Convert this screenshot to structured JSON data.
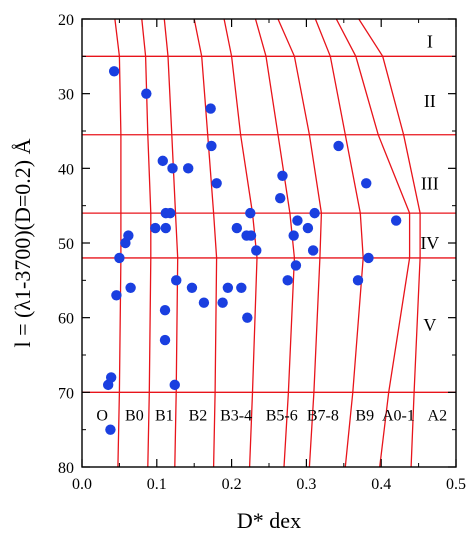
{
  "chart_data": {
    "type": "scatter",
    "title": "",
    "xlabel": "D* dex",
    "ylabel": "l = (λ1-3700)(D=0.2) Å",
    "xlim": [
      0.0,
      0.5
    ],
    "ylim": [
      80,
      20
    ],
    "y_inverted": true,
    "grid": false,
    "x_ticks": [
      "0.0",
      "0.1",
      "0.2",
      "0.3",
      "0.4",
      "0.5"
    ],
    "y_ticks": [
      "20",
      "30",
      "40",
      "50",
      "60",
      "70",
      "80"
    ],
    "colors": {
      "points": "#1a3fe0",
      "curves": "#e8141b",
      "axes": "#000000"
    },
    "points": [
      {
        "x": 0.043,
        "y": 27
      },
      {
        "x": 0.035,
        "y": 69
      },
      {
        "x": 0.039,
        "y": 68
      },
      {
        "x": 0.038,
        "y": 75
      },
      {
        "x": 0.046,
        "y": 57
      },
      {
        "x": 0.05,
        "y": 52
      },
      {
        "x": 0.058,
        "y": 50
      },
      {
        "x": 0.062,
        "y": 49
      },
      {
        "x": 0.065,
        "y": 56
      },
      {
        "x": 0.086,
        "y": 30
      },
      {
        "x": 0.098,
        "y": 48
      },
      {
        "x": 0.108,
        "y": 39
      },
      {
        "x": 0.112,
        "y": 46
      },
      {
        "x": 0.112,
        "y": 48
      },
      {
        "x": 0.111,
        "y": 59
      },
      {
        "x": 0.111,
        "y": 63
      },
      {
        "x": 0.118,
        "y": 46
      },
      {
        "x": 0.121,
        "y": 40
      },
      {
        "x": 0.124,
        "y": 69
      },
      {
        "x": 0.126,
        "y": 55
      },
      {
        "x": 0.142,
        "y": 40
      },
      {
        "x": 0.147,
        "y": 56
      },
      {
        "x": 0.163,
        "y": 58
      },
      {
        "x": 0.172,
        "y": 32
      },
      {
        "x": 0.173,
        "y": 37
      },
      {
        "x": 0.18,
        "y": 42
      },
      {
        "x": 0.188,
        "y": 58
      },
      {
        "x": 0.195,
        "y": 56
      },
      {
        "x": 0.207,
        "y": 48
      },
      {
        "x": 0.213,
        "y": 56
      },
      {
        "x": 0.22,
        "y": 49
      },
      {
        "x": 0.221,
        "y": 60
      },
      {
        "x": 0.225,
        "y": 46
      },
      {
        "x": 0.226,
        "y": 49
      },
      {
        "x": 0.233,
        "y": 51
      },
      {
        "x": 0.265,
        "y": 44
      },
      {
        "x": 0.268,
        "y": 41
      },
      {
        "x": 0.275,
        "y": 55
      },
      {
        "x": 0.283,
        "y": 49
      },
      {
        "x": 0.286,
        "y": 53
      },
      {
        "x": 0.288,
        "y": 47
      },
      {
        "x": 0.302,
        "y": 48
      },
      {
        "x": 0.309,
        "y": 51
      },
      {
        "x": 0.311,
        "y": 46
      },
      {
        "x": 0.343,
        "y": 37
      },
      {
        "x": 0.369,
        "y": 55
      },
      {
        "x": 0.38,
        "y": 42
      },
      {
        "x": 0.383,
        "y": 52
      },
      {
        "x": 0.42,
        "y": 47
      }
    ],
    "horizontal_lines": [
      25,
      35.5,
      46,
      52,
      70
    ],
    "region_labels": [
      {
        "label": "I",
        "x": 0.465,
        "y": 23
      },
      {
        "label": "II",
        "x": 0.465,
        "y": 31
      },
      {
        "label": "III",
        "x": 0.465,
        "y": 42
      },
      {
        "label": "IV",
        "x": 0.465,
        "y": 50
      },
      {
        "label": "V",
        "x": 0.465,
        "y": 61
      }
    ],
    "class_labels": [
      {
        "label": "O",
        "x": 0.027,
        "y": 73
      },
      {
        "label": "B0",
        "x": 0.07,
        "y": 73
      },
      {
        "label": "B1",
        "x": 0.11,
        "y": 73
      },
      {
        "label": "B2",
        "x": 0.155,
        "y": 73
      },
      {
        "label": "B3-4",
        "x": 0.206,
        "y": 73
      },
      {
        "label": "B5-6",
        "x": 0.267,
        "y": 73
      },
      {
        "label": "B7-8",
        "x": 0.322,
        "y": 73
      },
      {
        "label": "B9",
        "x": 0.378,
        "y": 73
      },
      {
        "label": "A0-1",
        "x": 0.423,
        "y": 73
      },
      {
        "label": "A2",
        "x": 0.475,
        "y": 73
      }
    ],
    "curves": [
      [
        [
          0.044,
          20
        ],
        [
          0.05,
          25
        ],
        [
          0.052,
          35.5
        ],
        [
          0.052,
          46
        ],
        [
          0.052,
          52
        ],
        [
          0.05,
          70
        ],
        [
          0.048,
          80
        ]
      ],
      [
        [
          0.08,
          20
        ],
        [
          0.085,
          25
        ],
        [
          0.088,
          35.5
        ],
        [
          0.092,
          46
        ],
        [
          0.092,
          52
        ],
        [
          0.09,
          70
        ],
        [
          0.088,
          80
        ]
      ],
      [
        [
          0.11,
          20
        ],
        [
          0.115,
          25
        ],
        [
          0.12,
          35.5
        ],
        [
          0.125,
          46
        ],
        [
          0.128,
          52
        ],
        [
          0.126,
          70
        ],
        [
          0.124,
          80
        ]
      ],
      [
        [
          0.15,
          20
        ],
        [
          0.16,
          25
        ],
        [
          0.168,
          35.5
        ],
        [
          0.176,
          46
        ],
        [
          0.18,
          52
        ],
        [
          0.178,
          70
        ],
        [
          0.176,
          80
        ]
      ],
      [
        [
          0.19,
          20
        ],
        [
          0.2,
          25
        ],
        [
          0.212,
          35.5
        ],
        [
          0.228,
          46
        ],
        [
          0.234,
          52
        ],
        [
          0.228,
          70
        ],
        [
          0.224,
          80
        ]
      ],
      [
        [
          0.232,
          20
        ],
        [
          0.246,
          25
        ],
        [
          0.262,
          35.5
        ],
        [
          0.278,
          46
        ],
        [
          0.284,
          52
        ],
        [
          0.276,
          70
        ],
        [
          0.27,
          80
        ]
      ],
      [
        [
          0.262,
          20
        ],
        [
          0.284,
          25
        ],
        [
          0.304,
          35.5
        ],
        [
          0.32,
          46
        ],
        [
          0.318,
          52
        ],
        [
          0.31,
          70
        ],
        [
          0.304,
          80
        ]
      ],
      [
        [
          0.312,
          20
        ],
        [
          0.332,
          25
        ],
        [
          0.352,
          35.5
        ],
        [
          0.372,
          46
        ],
        [
          0.376,
          52
        ],
        [
          0.362,
          70
        ],
        [
          0.352,
          80
        ]
      ],
      [
        [
          0.34,
          20
        ],
        [
          0.366,
          25
        ],
        [
          0.396,
          35.5
        ],
        [
          0.438,
          46
        ],
        [
          0.438,
          52
        ],
        [
          0.41,
          70
        ],
        [
          0.398,
          80
        ]
      ],
      [
        [
          0.37,
          20
        ],
        [
          0.402,
          25
        ],
        [
          0.43,
          35.5
        ],
        [
          0.452,
          46
        ],
        [
          0.452,
          52
        ],
        [
          0.444,
          70
        ],
        [
          0.44,
          80
        ]
      ]
    ]
  }
}
